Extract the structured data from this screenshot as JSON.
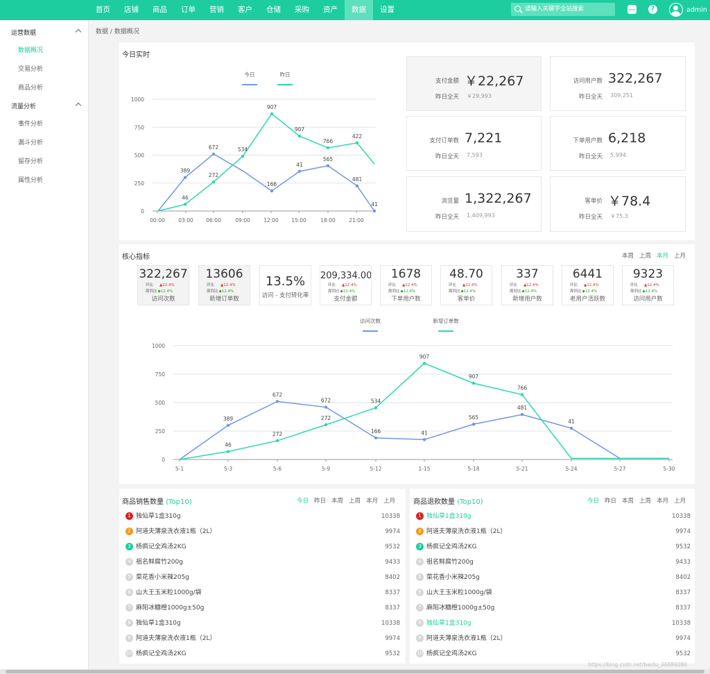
{
  "nav": {
    "items": [
      "首页",
      "店铺",
      "商品",
      "订单",
      "营销",
      "客户",
      "仓储",
      "采购",
      "资产",
      "数据",
      "设置"
    ],
    "active_index": 9
  },
  "search": {
    "placeholder": "请输入关键字全站搜索"
  },
  "user": {
    "name": "admin"
  },
  "header_icons": [
    "chat-icon",
    "help-icon",
    "avatar-icon"
  ],
  "sidebar": {
    "groups": [
      {
        "label": "运营数据",
        "items": [
          {
            "label": "数据概况",
            "active": true
          },
          {
            "label": "交易分析"
          },
          {
            "label": "商品分析"
          }
        ]
      },
      {
        "label": "流量分析",
        "items": [
          {
            "label": "事件分析"
          },
          {
            "label": "漏斗分析"
          },
          {
            "label": "留存分析"
          },
          {
            "label": "属性分析"
          }
        ]
      }
    ]
  },
  "breadcrumb": {
    "root": "数据",
    "sep": "/",
    "current": "数据概况"
  },
  "realtime": {
    "title": "今日实时",
    "legend": [
      "今日",
      "昨日"
    ],
    "stats": [
      {
        "label": "支付金额",
        "value": "￥22,267",
        "sub_label": "昨日全天",
        "sub_value": "￥29,993"
      },
      {
        "label": "访问用户数",
        "value": "322,267",
        "sub_label": "昨日全天",
        "sub_value": "309,251"
      },
      {
        "label": "支付订单数",
        "value": "7,221",
        "sub_label": "昨日全天",
        "sub_value": "7,593"
      },
      {
        "label": "下单用户数",
        "value": "6,218",
        "sub_label": "昨日全天",
        "sub_value": "5,994"
      },
      {
        "label": "浏览量",
        "value": "1,322,267",
        "sub_label": "昨日全天",
        "sub_value": "1,409,993"
      },
      {
        "label": "客单价",
        "value": "￥78.4",
        "sub_label": "昨日全天",
        "sub_value": "￥75.3"
      }
    ]
  },
  "core": {
    "title": "核心指标",
    "periods": [
      "本周",
      "上周",
      "本月",
      "上月"
    ],
    "active_period": 2,
    "metrics": [
      {
        "value": "322,267",
        "label": "访问次数",
        "hb_label": "环比",
        "hb": "12.4%",
        "zt_label": "周同比",
        "zt": "12.4%"
      },
      {
        "value": "13606",
        "label": "新增订单数",
        "hb_label": "环比",
        "hb": "12.4%",
        "zt_label": "周同比",
        "zt": "12.4%"
      },
      {
        "value": "13.5%",
        "label": "访问 - 支付转化率"
      },
      {
        "value": "209,334.00",
        "label": "支付金额",
        "hb_label": "环比",
        "hb": "12.4%",
        "zt_label": "周同比",
        "zt": "12.4%"
      },
      {
        "value": "1678",
        "label": "下单用户数",
        "hb_label": "环比",
        "hb": "12.4%",
        "zt_label": "周同比",
        "zt": "12.4%"
      },
      {
        "value": "48.70",
        "label": "客单价",
        "hb_label": "环比",
        "hb": "12.4%",
        "zt_label": "周同比",
        "zt": "12.4%"
      },
      {
        "value": "337",
        "label": "新增用户数",
        "hb_label": "环比",
        "hb": "12.4%",
        "zt_label": "周同比",
        "zt": "12.4%"
      },
      {
        "value": "6441",
        "label": "老用户活跃数",
        "hb_label": "环比",
        "hb": "12.4%",
        "zt_label": "周同比",
        "zt": "12.4%"
      },
      {
        "value": "9323",
        "label": "访问用户数",
        "hb_label": "环比",
        "hb": "12.4%",
        "zt_label": "周同比",
        "zt": "12.4%"
      }
    ],
    "legend": [
      "访问次数",
      "新增订单数"
    ]
  },
  "chart_data": [
    {
      "type": "line",
      "x": [
        "00:00",
        "03:00",
        "06:00",
        "09:00",
        "12:00",
        "15:00",
        "18:00",
        "21:00"
      ],
      "x_values": [
        0,
        3,
        6,
        9,
        12,
        15,
        18,
        21,
        23
      ],
      "yticks": [
        0,
        250,
        500,
        750,
        1000
      ],
      "ylim": [
        0,
        1000
      ],
      "series": [
        {
          "name": "今日",
          "color": "#6f96e8",
          "values": [
            0,
            389,
            672,
            534,
            166,
            41,
            565,
            481,
            41
          ],
          "labels": [
            "",
            "389",
            "672",
            "",
            "166",
            "41",
            "565",
            "481",
            "41"
          ],
          "y": [
            0,
            300,
            510,
            360,
            180,
            355,
            405,
            225,
            0
          ]
        },
        {
          "name": "昨日",
          "color": "#2dd7b3",
          "values": [
            0,
            46,
            272,
            534,
            907,
            907,
            766,
            422,
            420
          ],
          "labels": [
            "",
            "46",
            "272",
            "534",
            "907",
            "907",
            "766",
            "422",
            ""
          ],
          "y": [
            0,
            60,
            260,
            490,
            870,
            670,
            565,
            610,
            420
          ]
        }
      ]
    },
    {
      "type": "line",
      "x": [
        "5-1",
        "5-3",
        "5-6",
        "5-9",
        "5-12",
        "1-15",
        "5-18",
        "5-21",
        "5-24",
        "5-27",
        "5-30"
      ],
      "yticks": [
        0,
        250,
        500,
        750,
        1000
      ],
      "ylim": [
        0,
        1000
      ],
      "series": [
        {
          "name": "访问次数",
          "color": "#6f96e8",
          "values": [
            0,
            389,
            672,
            672,
            166,
            41,
            565,
            481,
            41,
            0,
            0
          ],
          "labels": [
            "",
            "389",
            "672",
            "672",
            "166",
            "41",
            "565",
            "481",
            "41",
            "",
            ""
          ],
          "y": [
            0,
            300,
            510,
            460,
            190,
            175,
            310,
            395,
            275,
            10,
            10
          ]
        },
        {
          "name": "新增订单数",
          "color": "#2dd7b3",
          "values": [
            0,
            46,
            272,
            272,
            534,
            907,
            907,
            766,
            0,
            0,
            0
          ],
          "labels": [
            "",
            "46",
            "272",
            "272",
            "534",
            "907",
            "907",
            "766",
            "",
            "",
            ""
          ],
          "y": [
            0,
            70,
            165,
            305,
            455,
            845,
            670,
            570,
            10,
            10,
            10
          ]
        }
      ]
    }
  ],
  "rank_sales": {
    "title": "商品销售数量",
    "suffix": "(Top10)",
    "periods": [
      "今日",
      "昨日",
      "本周",
      "上周",
      "本月",
      "上月"
    ],
    "active_period": 0,
    "items": [
      {
        "name": "独仙草1盒310g",
        "value": "10338"
      },
      {
        "name": "阿道夫薄泉洗衣液1瓶（2L）",
        "value": "9974"
      },
      {
        "name": "杨疯记全鸡汤2KG",
        "value": "9532"
      },
      {
        "name": "祖名鲜腐竹200g",
        "value": "9433"
      },
      {
        "name": "菜花香小米辣205g",
        "value": "8402"
      },
      {
        "name": "山大王玉米粒1000g/袋",
        "value": "8337"
      },
      {
        "name": "麻阳冰糖橙1000g±50g",
        "value": "8337"
      },
      {
        "name": "独仙草1盒310g",
        "value": "10338"
      },
      {
        "name": "阿道夫薄泉洗衣液1瓶（2L）",
        "value": "9974"
      },
      {
        "name": "杨疯记全鸡汤2KG",
        "value": "9532"
      }
    ]
  },
  "rank_refund": {
    "title": "商品退款数量",
    "suffix": "(Top10)",
    "periods": [
      "今日",
      "昨日",
      "本周",
      "上周",
      "本月",
      "上月"
    ],
    "active_period": 0,
    "items": [
      {
        "name": "独仙草1盒310g",
        "value": "10338",
        "highlight": true
      },
      {
        "name": "阿道夫薄泉洗衣液1瓶（2L）",
        "value": "9974"
      },
      {
        "name": "杨疯记全鸡汤2KG",
        "value": "9532"
      },
      {
        "name": "祖名鲜腐竹200g",
        "value": "9433"
      },
      {
        "name": "菜花香小米辣205g",
        "value": "8402"
      },
      {
        "name": "山大王玉米粒1000g/袋",
        "value": "8337"
      },
      {
        "name": "麻阳冰糖橙1000g±50g",
        "value": "8337"
      },
      {
        "name": "独仙草1盒310g",
        "value": "10338",
        "highlight": true
      },
      {
        "name": "阿道夫薄泉洗衣液1瓶（2L）",
        "value": "9974"
      },
      {
        "name": "杨疯记全鸡汤2KG",
        "value": "9532"
      }
    ]
  },
  "rank_colors": [
    "#e02020",
    "#f29a1a",
    "#1dcda0",
    "#d6d6d6"
  ],
  "accent": "#1dcda0",
  "watermark": "https://blog.csdn.net/baidu_36886080"
}
